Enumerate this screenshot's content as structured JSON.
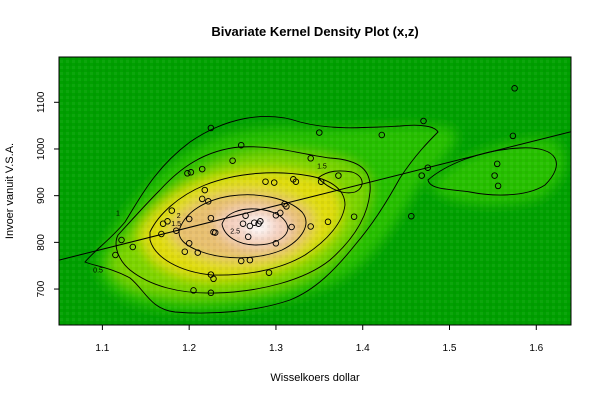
{
  "chart_data": {
    "type": "scatter",
    "title": "Bivariate Kernel Density Plot (x,z)",
    "xlabel": "Wisselkoers dollar",
    "ylabel": "Invoer vanuit V.S.A.",
    "xlim": [
      1.05,
      1.64
    ],
    "ylim": [
      623,
      1197
    ],
    "x_ticks": [
      1.1,
      1.2,
      1.3,
      1.4,
      1.5,
      1.6
    ],
    "x_tick_labels": [
      "1.1",
      "1.2",
      "1.3",
      "1.4",
      "1.5",
      "1.6"
    ],
    "y_ticks": [
      700,
      800,
      900,
      1000,
      1100
    ],
    "y_tick_labels": [
      "700",
      "800",
      "900",
      "1000",
      "1100"
    ],
    "contour_labels": [
      {
        "text": "0.5",
        "x": 1.095,
        "y": 735
      },
      {
        "text": "1",
        "x": 1.118,
        "y": 858
      },
      {
        "text": "1.5",
        "x": 1.185,
        "y": 835
      },
      {
        "text": "1.5",
        "x": 1.353,
        "y": 958
      },
      {
        "text": "2",
        "x": 1.188,
        "y": 852
      },
      {
        "text": "2.5",
        "x": 1.253,
        "y": 819
      }
    ],
    "points": [
      [
        1.115,
        773
      ],
      [
        1.122,
        805
      ],
      [
        1.135,
        790
      ],
      [
        1.168,
        818
      ],
      [
        1.17,
        840
      ],
      [
        1.175,
        845
      ],
      [
        1.18,
        868
      ],
      [
        1.185,
        825
      ],
      [
        1.195,
        780
      ],
      [
        1.198,
        948
      ],
      [
        1.2,
        850
      ],
      [
        1.2,
        798
      ],
      [
        1.202,
        950
      ],
      [
        1.205,
        697
      ],
      [
        1.21,
        778
      ],
      [
        1.215,
        957
      ],
      [
        1.215,
        893
      ],
      [
        1.218,
        912
      ],
      [
        1.222,
        888
      ],
      [
        1.225,
        1045
      ],
      [
        1.225,
        852
      ],
      [
        1.225,
        731
      ],
      [
        1.225,
        692
      ],
      [
        1.228,
        722
      ],
      [
        1.228,
        822
      ],
      [
        1.23,
        821
      ],
      [
        1.25,
        975
      ],
      [
        1.26,
        1008
      ],
      [
        1.26,
        760
      ],
      [
        1.262,
        840
      ],
      [
        1.265,
        857
      ],
      [
        1.268,
        812
      ],
      [
        1.27,
        835
      ],
      [
        1.27,
        762
      ],
      [
        1.275,
        842
      ],
      [
        1.28,
        840
      ],
      [
        1.282,
        845
      ],
      [
        1.288,
        930
      ],
      [
        1.292,
        735
      ],
      [
        1.298,
        928
      ],
      [
        1.3,
        858
      ],
      [
        1.3,
        798
      ],
      [
        1.305,
        863
      ],
      [
        1.31,
        882
      ],
      [
        1.312,
        877
      ],
      [
        1.318,
        833
      ],
      [
        1.32,
        935
      ],
      [
        1.323,
        930
      ],
      [
        1.34,
        980
      ],
      [
        1.34,
        834
      ],
      [
        1.35,
        1035
      ],
      [
        1.352,
        930
      ],
      [
        1.36,
        844
      ],
      [
        1.372,
        943
      ],
      [
        1.39,
        855
      ],
      [
        1.422,
        1030
      ],
      [
        1.456,
        856
      ],
      [
        1.468,
        943
      ],
      [
        1.47,
        1060
      ],
      [
        1.475,
        960
      ],
      [
        1.552,
        943
      ],
      [
        1.555,
        968
      ],
      [
        1.556,
        921
      ],
      [
        1.573,
        1028
      ],
      [
        1.575,
        1130
      ]
    ],
    "regression_line": {
      "x": [
        1.05,
        1.64
      ],
      "y": [
        762,
        1037
      ]
    },
    "density_colors": [
      "#00a000",
      "#20c000",
      "#6fd000",
      "#d8e000",
      "#e8c060",
      "#f0c0a0",
      "#ffffff"
    ],
    "line_color": "#000000",
    "grid": false,
    "legend": "none"
  }
}
